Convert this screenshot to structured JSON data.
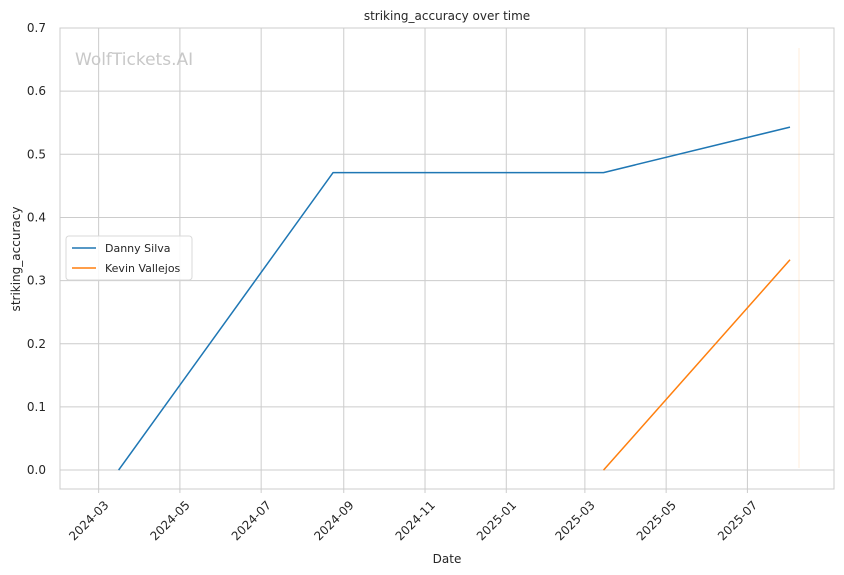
{
  "chart_data": {
    "type": "line",
    "title": "striking_accuracy over time",
    "xlabel": "Date",
    "ylabel": "striking_accuracy",
    "watermark": "WolfTickets.AI",
    "x_ticks": [
      "2024-03",
      "2024-05",
      "2024-07",
      "2024-09",
      "2024-11",
      "2025-01",
      "2025-03",
      "2025-05",
      "2025-07"
    ],
    "y_ticks": [
      "0.0",
      "0.1",
      "0.2",
      "0.3",
      "0.4",
      "0.5",
      "0.6",
      "0.7"
    ],
    "ylim": [
      -0.03,
      0.7
    ],
    "xlim": [
      "2024-02-01",
      "2025-09-04"
    ],
    "grid": true,
    "legend_position": "center-left",
    "series": [
      {
        "name": "Danny Silva",
        "color": "#1f77b4",
        "points": [
          {
            "x": "2024-03-16",
            "y": 0.0
          },
          {
            "x": "2024-08-24",
            "y": 0.471
          },
          {
            "x": "2025-03-15",
            "y": 0.471
          },
          {
            "x": "2025-08-02",
            "y": 0.543
          }
        ]
      },
      {
        "name": "Kevin Vallejos",
        "color": "#ff7f0e",
        "points": [
          {
            "x": "2025-03-15",
            "y": 0.0
          },
          {
            "x": "2025-08-02",
            "y": 0.333
          }
        ]
      }
    ]
  }
}
